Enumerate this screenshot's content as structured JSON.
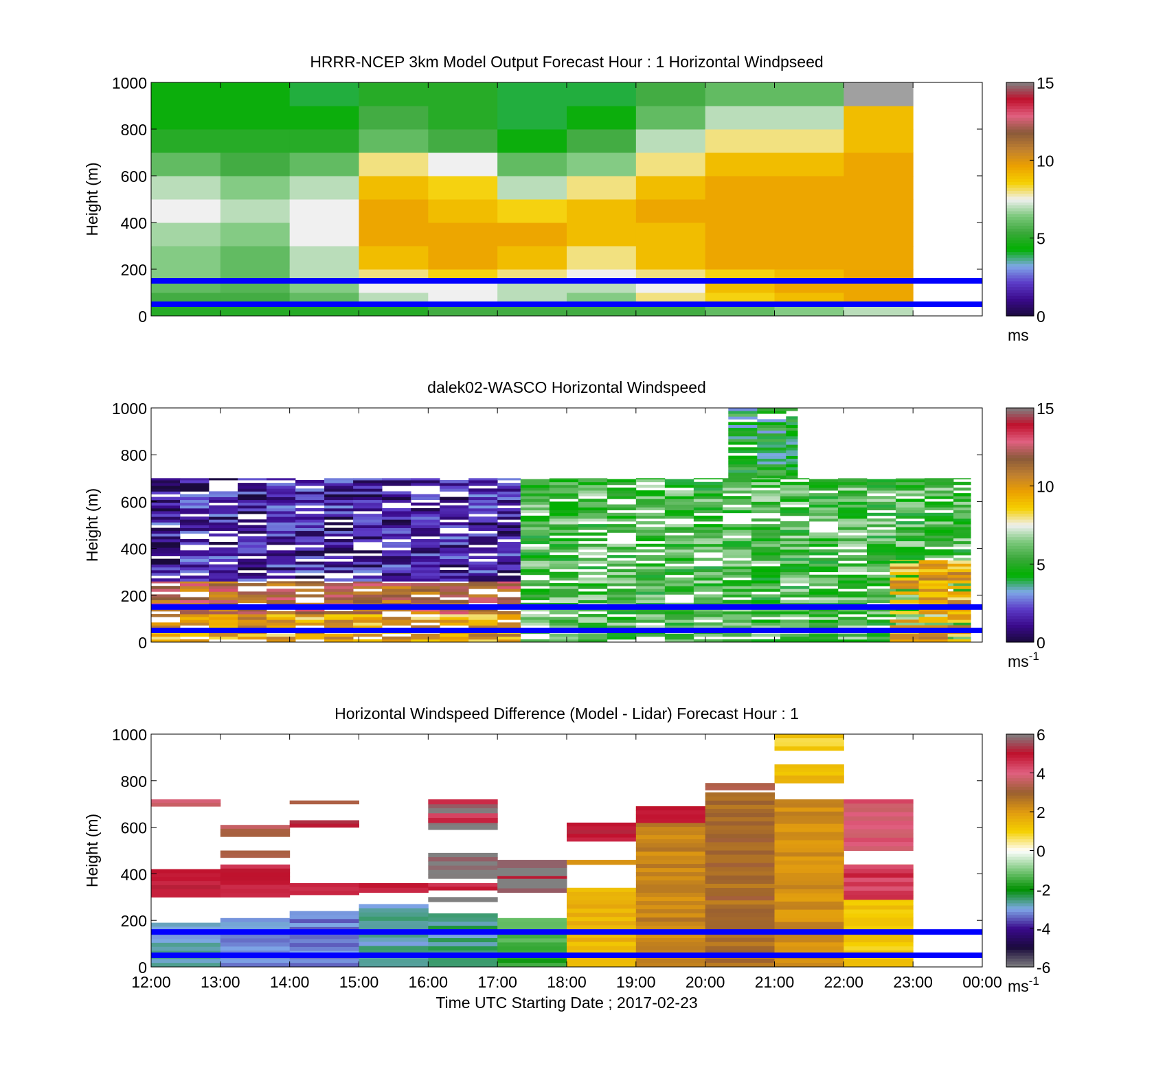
{
  "figure": {
    "xlabel": "Time UTC  Starting Date ; 2017-02-23",
    "xticks": [
      "12:00",
      "13:00",
      "14:00",
      "15:00",
      "16:00",
      "17:00",
      "18:00",
      "19:00",
      "20:00",
      "21:00",
      "22:00",
      "23:00",
      "00:00"
    ]
  },
  "colors": {
    "reference_lines": "#0000ff",
    "speed_scale": [
      "#1a0a3c",
      "#3a0a8c",
      "#5c3cc8",
      "#7fa8e8",
      "#00b000",
      "#3aa83a",
      "#7cc87c",
      "#f0f0f0",
      "#f5d000",
      "#eca000",
      "#c08030",
      "#8a5a3a",
      "#e06080",
      "#c0102c",
      "#808080"
    ],
    "diff_scale": [
      "#808080",
      "#1a0a3c",
      "#3a0a8c",
      "#7fa8e8",
      "#009000",
      "#7cc87c",
      "#ffffff",
      "#f5d000",
      "#e09a10",
      "#9a6030",
      "#e06080",
      "#c0102c",
      "#808080"
    ]
  },
  "chart_data": [
    {
      "type": "heatmap",
      "title": "HRRR-NCEP 3km Model Output   Forecast Hour : 1 Horizontal Windpseed",
      "ylabel": "Height (m)",
      "ylim": [
        0,
        1000
      ],
      "yticks": [
        "0",
        "200",
        "400",
        "600",
        "800",
        "1000"
      ],
      "x_hours": [
        "12:00",
        "13:00",
        "14:00",
        "15:00",
        "16:00",
        "17:00",
        "18:00",
        "19:00",
        "20:00",
        "21:00",
        "22:00"
      ],
      "height_levels_m": [
        25,
        75,
        125,
        175,
        250,
        350,
        450,
        550,
        650,
        750,
        850,
        950
      ],
      "values_ms": [
        [
          5.0,
          5.0,
          5.0,
          5.0,
          5.5,
          5.5,
          5.5,
          5.5,
          6.0,
          6.5,
          7.0
        ],
        [
          5.5,
          5.5,
          6.0,
          7.0,
          7.5,
          7.0,
          6.5,
          8.0,
          8.5,
          9.0,
          9.5
        ],
        [
          6.0,
          5.8,
          6.5,
          7.5,
          7.5,
          7.0,
          7.0,
          7.5,
          9.0,
          9.5,
          9.5
        ],
        [
          6.5,
          6.0,
          7.0,
          8.0,
          8.5,
          8.0,
          7.5,
          8.0,
          8.5,
          9.0,
          9.5
        ],
        [
          6.5,
          6.0,
          7.0,
          9.0,
          9.5,
          9.0,
          8.0,
          9.0,
          9.5,
          9.5,
          9.5
        ],
        [
          6.8,
          6.5,
          7.5,
          9.5,
          9.5,
          9.5,
          9.0,
          9.0,
          9.5,
          9.5,
          9.5
        ],
        [
          7.5,
          7.0,
          7.5,
          9.5,
          9.0,
          8.5,
          9.0,
          9.5,
          9.5,
          9.5,
          9.5
        ],
        [
          7.0,
          6.5,
          7.0,
          9.0,
          8.5,
          7.0,
          8.0,
          9.0,
          9.5,
          9.5,
          9.5
        ],
        [
          6.0,
          5.5,
          6.0,
          8.0,
          7.5,
          6.0,
          6.5,
          8.0,
          9.0,
          9.0,
          9.5
        ],
        [
          5.0,
          5.0,
          5.0,
          6.0,
          5.5,
          4.5,
          5.5,
          7.0,
          8.0,
          8.0,
          9.0
        ],
        [
          4.5,
          4.5,
          4.5,
          5.5,
          5.0,
          4.0,
          4.5,
          6.0,
          7.0,
          7.0,
          9.0
        ],
        [
          4.5,
          4.5,
          4.0,
          5.0,
          5.0,
          4.0,
          4.0,
          5.5,
          6.0,
          6.0,
          14.5
        ]
      ],
      "reference_lines_m": [
        50,
        150
      ],
      "colorbar": {
        "ticks": [
          "0",
          "5",
          "10",
          "15"
        ],
        "range": [
          0,
          15
        ],
        "unit": "ms"
      }
    },
    {
      "type": "heatmap",
      "title": "dalek02-WASCO  Horizontal Windspeed",
      "ylabel": "Height (m)",
      "ylim": [
        0,
        1000
      ],
      "yticks": [
        "0",
        "200",
        "400",
        "600",
        "800",
        "1000"
      ],
      "regimes": [
        {
          "time_range": [
            "12:00",
            "17:20"
          ],
          "height_range_m": [
            0,
            120
          ],
          "speed_ms": 9.5
        },
        {
          "time_range": [
            "12:00",
            "17:20"
          ],
          "height_range_m": [
            120,
            260
          ],
          "speed_ms": 11.5
        },
        {
          "time_range": [
            "12:00",
            "17:20"
          ],
          "height_range_m": [
            260,
            700
          ],
          "speed_ms": 1.5
        },
        {
          "time_range": [
            "17:20",
            "23:50"
          ],
          "height_range_m": [
            0,
            700
          ],
          "speed_ms": 5.5
        },
        {
          "time_range": [
            "20:20",
            "21:20"
          ],
          "height_range_m": [
            700,
            1000
          ],
          "speed_ms": 4.5
        },
        {
          "time_range": [
            "22:40",
            "23:50"
          ],
          "height_range_m": [
            0,
            350
          ],
          "speed_ms": 9.5
        }
      ],
      "reference_lines_m": [
        50,
        150
      ],
      "colorbar": {
        "ticks": [
          "0",
          "5",
          "10",
          "15"
        ],
        "range": [
          0,
          15
        ],
        "unit": "ms",
        "unit_exp": "-1"
      }
    },
    {
      "type": "heatmap",
      "title": "Horizontal Windspeed Difference (Model - Lidar) Forecast Hour : 1",
      "ylabel": "Height (m)",
      "ylim": [
        0,
        1000
      ],
      "yticks": [
        "0",
        "200",
        "400",
        "600",
        "800",
        "1000"
      ],
      "x_hours": [
        "12:00",
        "13:00",
        "14:00",
        "15:00",
        "16:00",
        "17:00",
        "18:00",
        "19:00",
        "20:00",
        "21:00",
        "22:00"
      ],
      "segments": [
        {
          "hour": "12:00",
          "range_m": [
            0,
            190
          ],
          "diff_ms": -2.8
        },
        {
          "hour": "12:00",
          "range_m": [
            300,
            420
          ],
          "diff_ms": 4.8
        },
        {
          "hour": "12:00",
          "range_m": [
            690,
            720
          ],
          "diff_ms": 4.0
        },
        {
          "hour": "13:00",
          "range_m": [
            0,
            210
          ],
          "diff_ms": -3.0
        },
        {
          "hour": "13:00",
          "range_m": [
            300,
            440
          ],
          "diff_ms": 4.8
        },
        {
          "hour": "13:00",
          "range_m": [
            470,
            500
          ],
          "diff_ms": 3.5
        },
        {
          "hour": "13:00",
          "range_m": [
            560,
            610
          ],
          "diff_ms": 3.5
        },
        {
          "hour": "14:00",
          "range_m": [
            0,
            240
          ],
          "diff_ms": -3.2
        },
        {
          "hour": "14:00",
          "range_m": [
            310,
            360
          ],
          "diff_ms": 4.8
        },
        {
          "hour": "14:00",
          "range_m": [
            600,
            630
          ],
          "diff_ms": 5.0
        },
        {
          "hour": "14:00",
          "range_m": [
            700,
            715
          ],
          "diff_ms": 3.5
        },
        {
          "hour": "15:00",
          "range_m": [
            0,
            270
          ],
          "diff_ms": -2.8
        },
        {
          "hour": "15:00",
          "range_m": [
            320,
            360
          ],
          "diff_ms": 4.8
        },
        {
          "hour": "16:00",
          "range_m": [
            0,
            230
          ],
          "diff_ms": -2.6
        },
        {
          "hour": "16:00",
          "range_m": [
            280,
            300
          ],
          "diff_ms": 6.0
        },
        {
          "hour": "16:00",
          "range_m": [
            330,
            360
          ],
          "diff_ms": 4.8
        },
        {
          "hour": "16:00",
          "range_m": [
            380,
            490
          ],
          "diff_ms": 6.0
        },
        {
          "hour": "16:00",
          "range_m": [
            590,
            700
          ],
          "diff_ms": 6.0
        },
        {
          "hour": "16:00",
          "range_m": [
            620,
            660
          ],
          "diff_ms": 4.5
        },
        {
          "hour": "16:00",
          "range_m": [
            700,
            720
          ],
          "diff_ms": 5.0
        },
        {
          "hour": "17:00",
          "range_m": [
            0,
            210
          ],
          "diff_ms": -1.5
        },
        {
          "hour": "17:00",
          "range_m": [
            320,
            460
          ],
          "diff_ms": 6.0
        },
        {
          "hour": "17:00",
          "range_m": [
            380,
            390
          ],
          "diff_ms": 5.0
        },
        {
          "hour": "18:00",
          "range_m": [
            0,
            340
          ],
          "diff_ms": 1.5
        },
        {
          "hour": "18:00",
          "range_m": [
            440,
            460
          ],
          "diff_ms": 2.2
        },
        {
          "hour": "18:00",
          "range_m": [
            540,
            620
          ],
          "diff_ms": 5.0
        },
        {
          "hour": "19:00",
          "range_m": [
            0,
            690
          ],
          "diff_ms": 2.4
        },
        {
          "hour": "19:00",
          "range_m": [
            620,
            690
          ],
          "diff_ms": 5.0
        },
        {
          "hour": "20:00",
          "range_m": [
            0,
            750
          ],
          "diff_ms": 2.8
        },
        {
          "hour": "20:00",
          "range_m": [
            760,
            790
          ],
          "diff_ms": 3.5
        },
        {
          "hour": "21:00",
          "range_m": [
            0,
            720
          ],
          "diff_ms": 2.2
        },
        {
          "hour": "21:00",
          "range_m": [
            790,
            870
          ],
          "diff_ms": 1.5
        },
        {
          "hour": "21:00",
          "range_m": [
            930,
            1000
          ],
          "diff_ms": 1.0
        },
        {
          "hour": "22:00",
          "range_m": [
            0,
            440
          ],
          "diff_ms": 1.2
        },
        {
          "hour": "22:00",
          "range_m": [
            290,
            440
          ],
          "diff_ms": 4.5
        },
        {
          "hour": "22:00",
          "range_m": [
            500,
            720
          ],
          "diff_ms": 4.0
        }
      ],
      "reference_lines_m": [
        50,
        150
      ],
      "colorbar": {
        "ticks": [
          "-6",
          "-4",
          "-2",
          "0",
          "2",
          "4",
          "6"
        ],
        "range": [
          -6,
          6
        ],
        "unit": "ms",
        "unit_exp": "-1"
      }
    }
  ]
}
